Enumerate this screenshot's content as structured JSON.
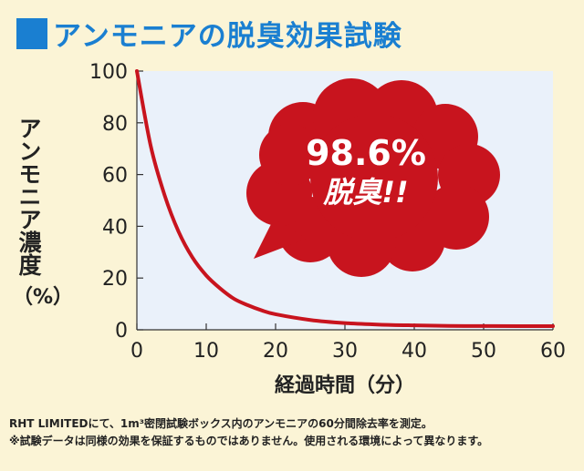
{
  "title": "アンモニアの脱臭効果試験",
  "callout": {
    "value": "98.6%",
    "label": "脱臭!!"
  },
  "colors": {
    "title": "#1a7fd1",
    "curve": "#c8141e",
    "cloud": "#c8141e",
    "plot_bg": "#eaf1fa"
  },
  "notes": [
    "RHT LIMITEDにて、1m³密閉試験ボックス内のアンモニアの60分間除去率を測定。",
    "※試験データは同様の効果を保証するものではありません。使用される環境によって異なります。"
  ],
  "chart_data": {
    "type": "line",
    "title": "アンモニアの脱臭効果試験",
    "xlabel": "経過時間（分）",
    "ylabel": "アンモニア濃度",
    "ylabel_unit": "（%）",
    "xlim": [
      0,
      60
    ],
    "ylim": [
      0,
      100
    ],
    "xticks": [
      0,
      10,
      20,
      30,
      40,
      50,
      60
    ],
    "yticks": [
      0,
      20,
      40,
      60,
      80,
      100
    ],
    "grid": false,
    "series": [
      {
        "x": [
          0,
          2,
          4,
          6,
          8,
          10,
          12,
          14,
          16,
          18,
          20,
          25,
          30,
          35,
          40,
          45,
          50,
          55,
          60
        ],
        "y": [
          100,
          71,
          52,
          38,
          28,
          21,
          16,
          12,
          9.5,
          7.5,
          6,
          3.8,
          2.6,
          2.0,
          1.7,
          1.5,
          1.45,
          1.4,
          1.4
        ]
      }
    ]
  }
}
